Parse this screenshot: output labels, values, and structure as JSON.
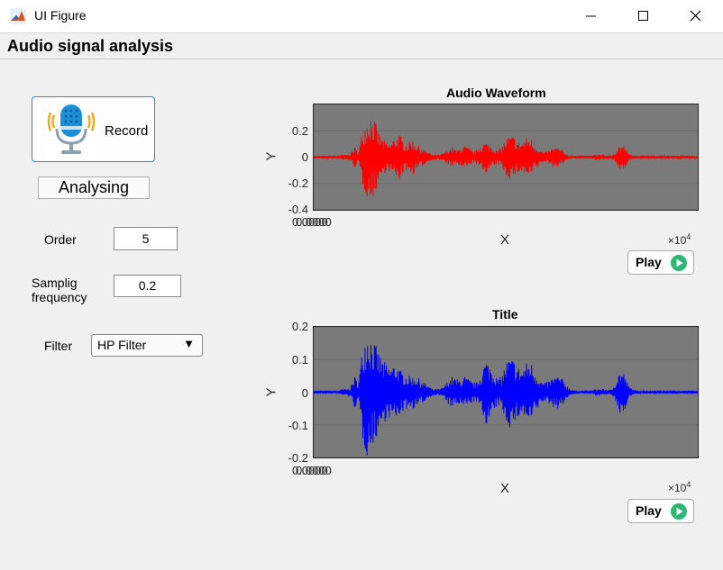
{
  "window": {
    "title": "UI Figure",
    "icon": "matlab-icon"
  },
  "window_controls": {
    "minimize_icon": "minimize-icon",
    "maximize_icon": "maximize-icon",
    "close_icon": "close-icon"
  },
  "panel": {
    "title": "Audio signal analysis"
  },
  "controls": {
    "record_label": "Record",
    "record_icon": "microphone-icon",
    "status_text": "Analysing",
    "order_label": "Order",
    "order_value": "5",
    "sampling_label_line1": "Samplig",
    "sampling_label_line2": "frequency",
    "sampling_value": "0.2",
    "filter_label": "Filter",
    "filter_value": "HP Filter"
  },
  "play_buttons": {
    "label": "Play",
    "icon": "play-icon"
  },
  "chart_data": [
    {
      "type": "line",
      "title": "Audio Waveform",
      "xlabel": "X",
      "ylabel": "Y",
      "x_exponent_label": "×10",
      "x_exponent": "4",
      "x_tick_label": "0.0000",
      "ylim": [
        -0.4,
        0.4
      ],
      "yticks": [
        "0.2",
        "0",
        "-0.2",
        "-0.4"
      ],
      "series": [
        {
          "color": "#ff0000",
          "envelope": [
            0.01,
            0.01,
            0.01,
            0.01,
            0.01,
            0.01,
            0.01,
            0.02,
            0.02,
            0.03,
            0.08,
            0.04,
            0.22,
            0.3,
            0.34,
            0.28,
            0.18,
            0.14,
            0.1,
            0.12,
            0.16,
            0.18,
            0.12,
            0.1,
            0.14,
            0.11,
            0.08,
            0.06,
            0.04,
            0.02,
            0.02,
            0.02,
            0.04,
            0.06,
            0.08,
            0.05,
            0.08,
            0.09,
            0.07,
            0.04,
            0.06,
            0.1,
            0.12,
            0.1,
            0.08,
            0.05,
            0.08,
            0.14,
            0.17,
            0.16,
            0.12,
            0.12,
            0.15,
            0.16,
            0.1,
            0.08,
            0.04,
            0.04,
            0.06,
            0.08,
            0.07,
            0.05,
            0.02,
            0.01,
            0.01,
            0.01,
            0.01,
            0.01,
            0.01,
            0.02,
            0.02,
            0.02,
            0.01,
            0.01,
            0.06,
            0.1,
            0.09,
            0.03,
            0.01,
            0.01,
            0.01,
            0.01,
            0.01,
            0.01,
            0.01,
            0.01,
            0.01,
            0.01,
            0.01,
            0.01,
            0.01,
            0.01,
            0.01,
            0.01,
            0.01
          ]
        }
      ]
    },
    {
      "type": "line",
      "title": "Title",
      "xlabel": "X",
      "ylabel": "Y",
      "x_exponent_label": "×10",
      "x_exponent": "4",
      "x_tick_label": "0.0000",
      "ylim": [
        -0.2,
        0.2
      ],
      "yticks": [
        "0.2",
        "0.1",
        "0",
        "-0.1",
        "-0.2"
      ],
      "series": [
        {
          "color": "#0000ff",
          "envelope": [
            0.005,
            0.005,
            0.005,
            0.005,
            0.005,
            0.005,
            0.005,
            0.01,
            0.01,
            0.015,
            0.05,
            0.03,
            0.15,
            0.2,
            0.18,
            0.15,
            0.12,
            0.1,
            0.08,
            0.08,
            0.09,
            0.07,
            0.06,
            0.05,
            0.05,
            0.05,
            0.04,
            0.03,
            0.02,
            0.01,
            0.01,
            0.01,
            0.02,
            0.04,
            0.05,
            0.04,
            0.04,
            0.05,
            0.04,
            0.03,
            0.03,
            0.06,
            0.1,
            0.09,
            0.07,
            0.04,
            0.05,
            0.09,
            0.11,
            0.1,
            0.08,
            0.07,
            0.09,
            0.1,
            0.07,
            0.05,
            0.03,
            0.03,
            0.04,
            0.05,
            0.05,
            0.04,
            0.02,
            0.01,
            0.005,
            0.005,
            0.005,
            0.005,
            0.005,
            0.01,
            0.01,
            0.01,
            0.008,
            0.008,
            0.04,
            0.07,
            0.06,
            0.02,
            0.01,
            0.005,
            0.005,
            0.005,
            0.005,
            0.005,
            0.005,
            0.005,
            0.005,
            0.005,
            0.005,
            0.005,
            0.005,
            0.005,
            0.005,
            0.005,
            0.005
          ]
        }
      ]
    }
  ]
}
